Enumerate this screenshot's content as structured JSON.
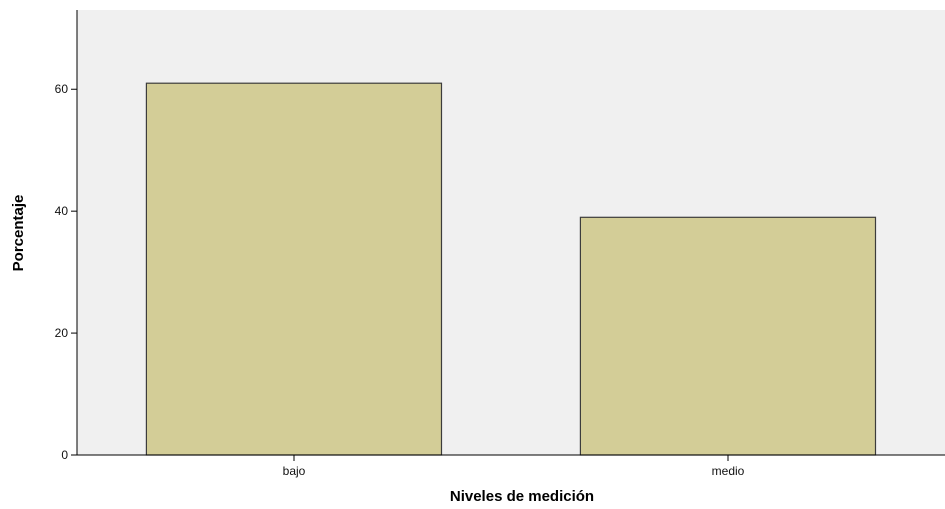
{
  "chart_data": {
    "type": "bar",
    "title": "",
    "xlabel": "Niveles de medición",
    "ylabel": "Porcentaje",
    "categories": [
      "bajo",
      "medio"
    ],
    "values": [
      61,
      39
    ],
    "ylim": [
      0,
      73
    ],
    "yticks": [
      0,
      20,
      40,
      60
    ],
    "grid": false,
    "legend": "none"
  },
  "colors": {
    "plot_background": "#f0f0f0",
    "bar_fill": "#d3cd97",
    "bar_stroke": "#3c3c3c",
    "axis": "#000000"
  }
}
